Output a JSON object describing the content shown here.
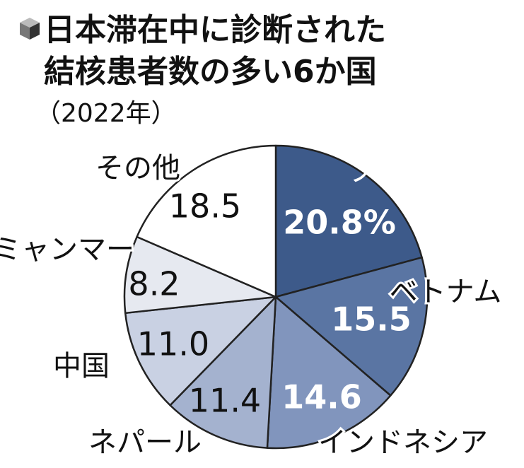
{
  "chart_data": {
    "type": "pie",
    "title": [
      "日本滞在中に診断された",
      "結核患者数の多い6か国"
    ],
    "subtitle": "（2022年）",
    "categories": [
      "フィリピン",
      "ベトナム",
      "インドネシア",
      "ネパール",
      "中国",
      "ミャンマー",
      "その他"
    ],
    "values": [
      20.8,
      15.5,
      14.6,
      11.4,
      11.0,
      8.2,
      18.5
    ],
    "value_labels": [
      "20.8%",
      "15.5",
      "14.6",
      "11.4",
      "11.0",
      "8.2",
      "18.5"
    ],
    "colors": [
      "#3d5a8a",
      "#5a75a3",
      "#8195bd",
      "#a4b2cf",
      "#c9d1e3",
      "#e6e9f0",
      "#ffffff"
    ]
  }
}
